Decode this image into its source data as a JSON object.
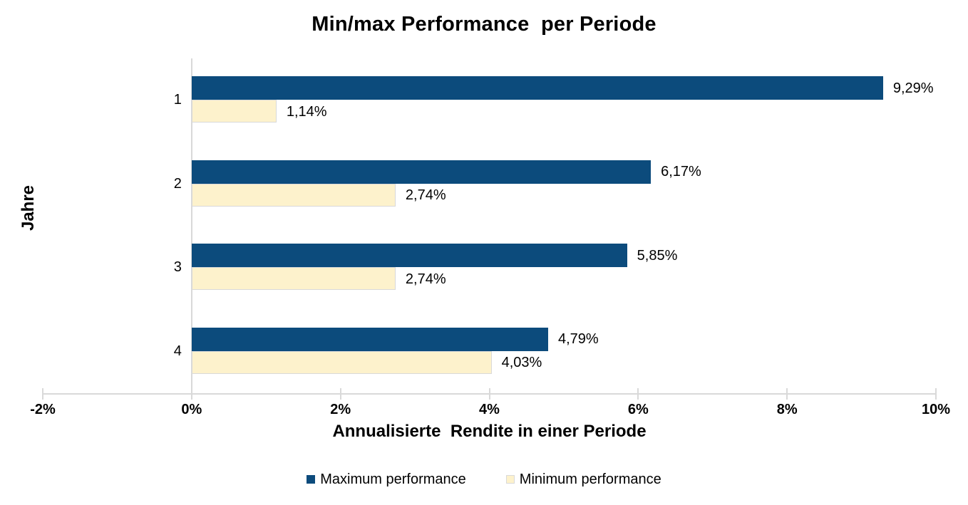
{
  "chart_data": {
    "type": "bar",
    "orientation": "horizontal",
    "title": "Min/max Performance  per Periode",
    "xlabel": "Annualisierte  Rendite in einer Periode",
    "ylabel": "Jahre",
    "categories": [
      "1",
      "2",
      "3",
      "4"
    ],
    "series": [
      {
        "name": "Maximum performance",
        "color": "#0c4b7c",
        "values": [
          9.29,
          6.17,
          5.85,
          4.79
        ],
        "labels": [
          "9,29%",
          "6,17%",
          "5,85%",
          "4,79%"
        ]
      },
      {
        "name": "Minimum performance",
        "color": "#fdf2cc",
        "border_color": "#d9d9d9",
        "values": [
          1.14,
          2.74,
          2.74,
          4.03
        ],
        "labels": [
          "1,14%",
          "2,74%",
          "2,74%",
          "4,03%"
        ]
      }
    ],
    "xlim": [
      -2,
      10
    ],
    "x_ticks": {
      "values": [
        -2,
        0,
        2,
        4,
        6,
        8,
        10
      ],
      "labels": [
        "-2%",
        "0%",
        "2%",
        "4%",
        "6%",
        "8%",
        "10%"
      ]
    },
    "grid": false,
    "legend_position": "bottom",
    "axis_color": "#d9d9d9",
    "text_color": "#000000",
    "background_color": "#ffffff"
  }
}
